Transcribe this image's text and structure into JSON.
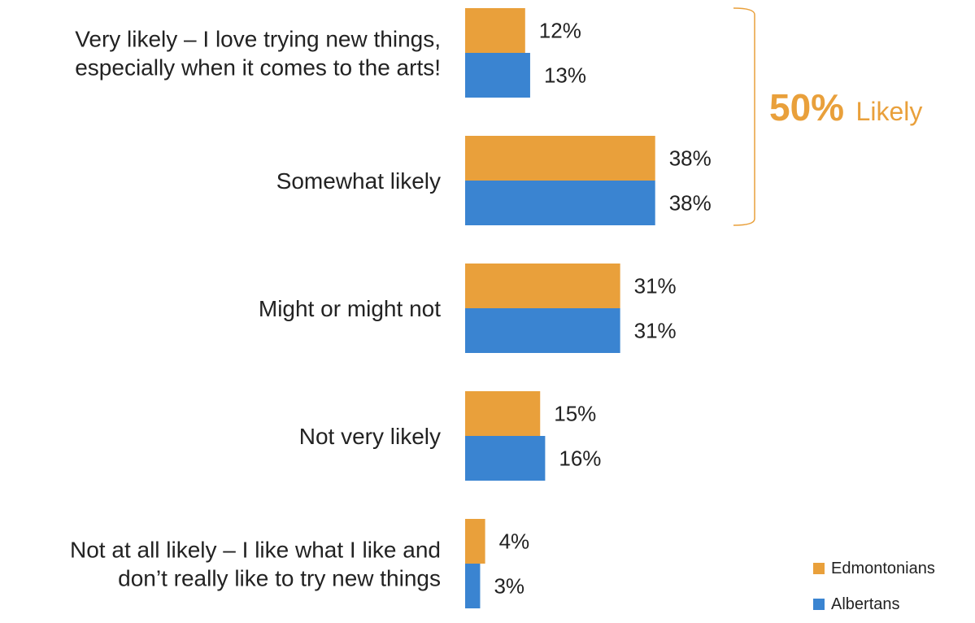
{
  "chart_data": {
    "type": "bar",
    "orientation": "horizontal",
    "categories": [
      "Very likely – I love trying new things, especially when it comes to the arts!",
      "Somewhat likely",
      "Might or might not",
      "Not very likely",
      "Not at all likely – I like what I like and don’t really like to try new things"
    ],
    "category_lines": [
      [
        "Very likely – I love trying new things,",
        "especially when it comes to the arts!"
      ],
      [
        "Somewhat likely"
      ],
      [
        "Might or might not"
      ],
      [
        "Not very likely"
      ],
      [
        "Not at all likely – I like what I like and",
        "don’t really like to try new things"
      ]
    ],
    "series": [
      {
        "name": "Edmontonians",
        "values": [
          12,
          38,
          31,
          15,
          4
        ],
        "color": "#E9A03B"
      },
      {
        "name": "Albertans",
        "values": [
          13,
          38,
          31,
          16,
          3
        ],
        "color": "#3A84D1"
      }
    ],
    "value_suffix": "%",
    "xlim": [
      0,
      100
    ],
    "grid": false,
    "legend_position": "bottom-right",
    "callout": {
      "value": "50%",
      "text": "Likely",
      "color": "#E9A03B",
      "spans_categories": [
        0,
        1
      ]
    }
  }
}
